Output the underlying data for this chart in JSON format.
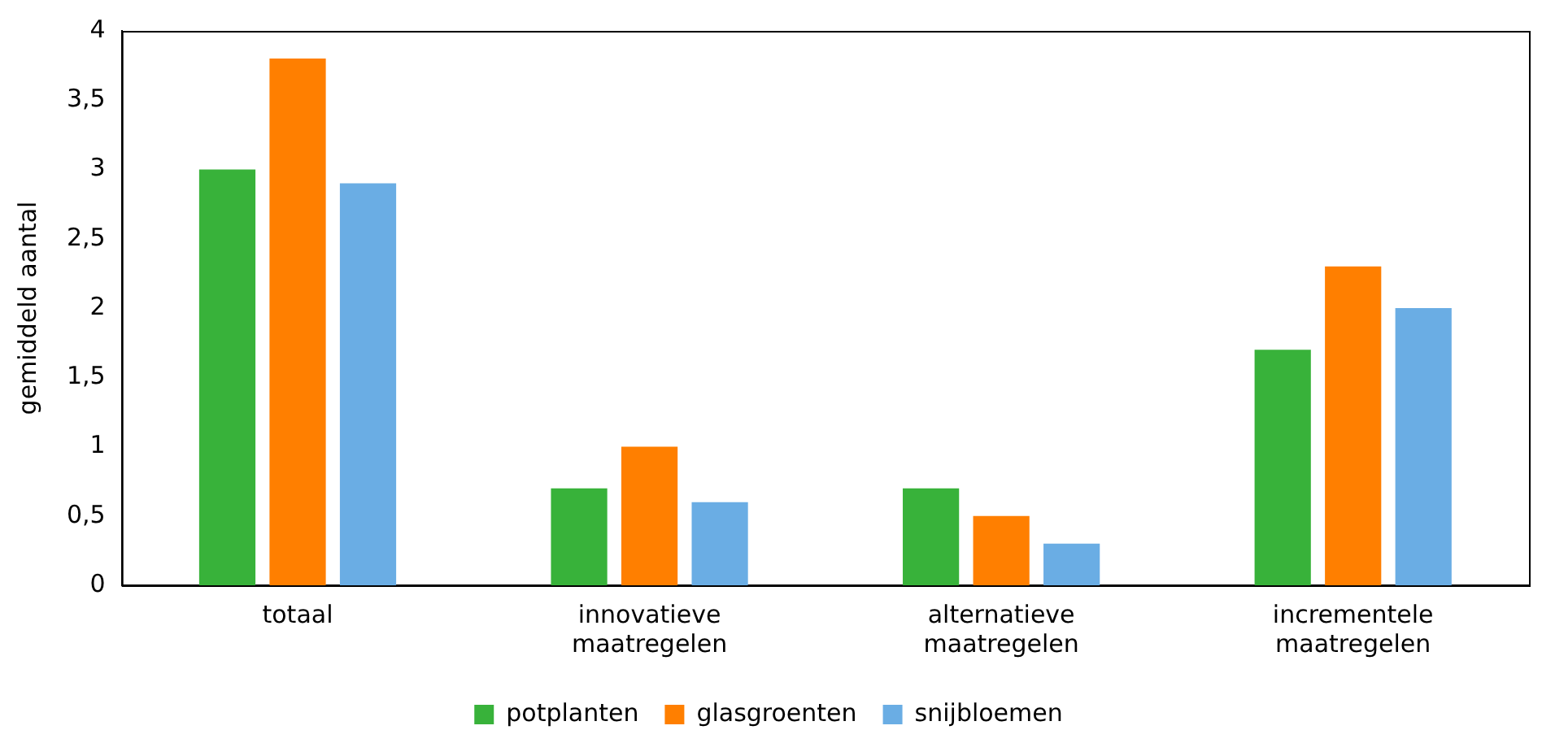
{
  "chart_data": {
    "type": "bar",
    "ylabel": "gemiddeld aantal",
    "categories": [
      "totaal",
      "innovatieve maatregelen",
      "alternatieve maatregelen",
      "incrementele maatregelen"
    ],
    "series": [
      {
        "name": "potplanten",
        "color": "#38b23a",
        "values": [
          3.0,
          0.7,
          0.7,
          1.7
        ]
      },
      {
        "name": "glasgroenten",
        "color": "#ff7f00",
        "values": [
          3.8,
          1.0,
          0.5,
          2.3
        ]
      },
      {
        "name": "snijbloemen",
        "color": "#6aade4",
        "values": [
          2.9,
          0.6,
          0.3,
          2.0
        ]
      }
    ],
    "ylim": [
      0,
      4
    ],
    "yticks": [
      0,
      {
        "value": 0.5,
        "label": "0,5"
      },
      1,
      {
        "value": 1.5,
        "label": "1,5"
      },
      2,
      {
        "value": 2.5,
        "label": "2,5"
      },
      3,
      {
        "value": 3.5,
        "label": "3,5"
      },
      4
    ],
    "grid": false,
    "legend": "bottom"
  }
}
